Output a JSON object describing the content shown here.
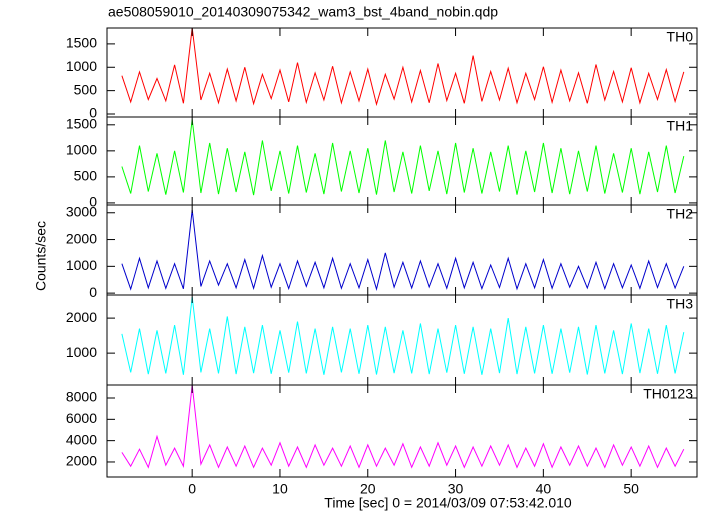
{
  "title": "ae508059010_20140309075342_wam3_bst_4band_nobin.qdp",
  "xlabel": "Time [sec] 0 = 2014/03/09 07:53:42.010",
  "ylabel": "Counts/sec",
  "chart_data": [
    {
      "type": "line",
      "x": [
        -8,
        -7,
        -6,
        -5,
        -4,
        -3,
        -2,
        -1,
        0,
        1,
        2,
        3,
        4,
        5,
        6,
        7,
        8,
        9,
        10,
        11,
        12,
        13,
        14,
        15,
        16,
        17,
        18,
        19,
        20,
        21,
        22,
        23,
        24,
        25,
        26,
        27,
        28,
        29,
        30,
        31,
        32,
        33,
        34,
        35,
        36,
        37,
        38,
        39,
        40,
        41,
        42,
        43,
        44,
        45,
        46,
        47,
        48,
        49,
        50,
        51,
        52,
        53,
        54,
        55,
        56
      ],
      "series": [
        {
          "name": "TH0",
          "color": "#ff0000",
          "values": [
            820,
            260,
            900,
            310,
            760,
            280,
            1050,
            230,
            1840,
            300,
            870,
            240,
            960,
            280,
            1000,
            220,
            850,
            330,
            940,
            260,
            1100,
            250,
            880,
            300,
            1020,
            240,
            900,
            280,
            960,
            210,
            850,
            320,
            1000,
            260,
            930,
            240,
            1080,
            290,
            870,
            230,
            1250,
            270,
            910,
            300,
            980,
            240,
            870,
            310,
            1010,
            250,
            940,
            280,
            880,
            230,
            1060,
            300,
            910,
            260,
            990,
            240,
            870,
            310,
            950,
            270,
            900
          ]
        }
      ],
      "xlim": [
        -9.7,
        57.5
      ],
      "xticks": [
        0,
        10,
        20,
        30,
        40,
        50
      ],
      "ylim": [
        -64,
        1840
      ],
      "yticks": [
        0,
        500,
        1000,
        1500
      ]
    },
    {
      "type": "line",
      "x": [
        -8,
        -7,
        -6,
        -5,
        -4,
        -3,
        -2,
        -1,
        0,
        1,
        2,
        3,
        4,
        5,
        6,
        7,
        8,
        9,
        10,
        11,
        12,
        13,
        14,
        15,
        16,
        17,
        18,
        19,
        20,
        21,
        22,
        23,
        24,
        25,
        26,
        27,
        28,
        29,
        30,
        31,
        32,
        33,
        34,
        35,
        36,
        37,
        38,
        39,
        40,
        41,
        42,
        43,
        44,
        45,
        46,
        47,
        48,
        49,
        50,
        51,
        52,
        53,
        54,
        55,
        56
      ],
      "series": [
        {
          "name": "TH1",
          "color": "#00ff00",
          "values": [
            700,
            180,
            1100,
            220,
            950,
            160,
            1000,
            200,
            1600,
            190,
            1150,
            170,
            1050,
            210,
            980,
            150,
            1200,
            230,
            1000,
            180,
            1100,
            200,
            950,
            170,
            1150,
            220,
            1000,
            190,
            1050,
            160,
            1200,
            210,
            980,
            180,
            1100,
            230,
            1000,
            170,
            1150,
            200,
            1050,
            180,
            980,
            220,
            1100,
            160,
            1000,
            210,
            1150,
            190,
            1050,
            170,
            1000,
            220,
            1100,
            180,
            950,
            200,
            1050,
            170,
            980,
            210,
            1100,
            190,
            900
          ]
        }
      ],
      "xlim": [
        -9.7,
        57.5
      ],
      "xticks": [
        0,
        10,
        20,
        30,
        40,
        50
      ],
      "ylim": [
        -40,
        1650
      ],
      "yticks": [
        0,
        500,
        1000,
        1500
      ]
    },
    {
      "type": "line",
      "x": [
        -8,
        -7,
        -6,
        -5,
        -4,
        -3,
        -2,
        -1,
        0,
        1,
        2,
        3,
        4,
        5,
        6,
        7,
        8,
        9,
        10,
        11,
        12,
        13,
        14,
        15,
        16,
        17,
        18,
        19,
        20,
        21,
        22,
        23,
        24,
        25,
        26,
        27,
        28,
        29,
        30,
        31,
        32,
        33,
        34,
        35,
        36,
        37,
        38,
        39,
        40,
        41,
        42,
        43,
        44,
        45,
        46,
        47,
        48,
        49,
        50,
        51,
        52,
        53,
        54,
        55,
        56
      ],
      "series": [
        {
          "name": "TH2",
          "color": "#0000cc",
          "values": [
            1100,
            150,
            1300,
            200,
            1200,
            180,
            1100,
            160,
            3100,
            250,
            1200,
            300,
            1100,
            200,
            1250,
            180,
            1400,
            220,
            1100,
            170,
            1200,
            250,
            1150,
            200,
            1300,
            180,
            1100,
            200,
            1250,
            150,
            1500,
            220,
            1150,
            190,
            1200,
            230,
            1100,
            180,
            1300,
            200,
            1150,
            170,
            1050,
            210,
            1300,
            160,
            1100,
            200,
            1250,
            180,
            1100,
            220,
            1000,
            190,
            1150,
            170,
            1100,
            200,
            1050,
            180,
            1200,
            210,
            1100,
            190,
            1000
          ]
        }
      ],
      "xlim": [
        -9.7,
        57.5
      ],
      "xticks": [
        0,
        10,
        20,
        30,
        40,
        50
      ],
      "ylim": [
        -70,
        3290
      ],
      "yticks": [
        0,
        1000,
        2000,
        3000
      ]
    },
    {
      "type": "line",
      "x": [
        -8,
        -7,
        -6,
        -5,
        -4,
        -3,
        -2,
        -1,
        0,
        1,
        2,
        3,
        4,
        5,
        6,
        7,
        8,
        9,
        10,
        11,
        12,
        13,
        14,
        15,
        16,
        17,
        18,
        19,
        20,
        21,
        22,
        23,
        24,
        25,
        26,
        27,
        28,
        29,
        30,
        31,
        32,
        33,
        34,
        35,
        36,
        37,
        38,
        39,
        40,
        41,
        42,
        43,
        44,
        45,
        46,
        47,
        48,
        49,
        50,
        51,
        52,
        53,
        54,
        55,
        56
      ],
      "series": [
        {
          "name": "TH3",
          "color": "#00ffff",
          "values": [
            1550,
            450,
            1700,
            400,
            1650,
            420,
            1800,
            380,
            2600,
            450,
            1700,
            420,
            2050,
            400,
            1750,
            430,
            1800,
            410,
            1650,
            440,
            1900,
            420,
            1700,
            380,
            1750,
            450,
            1700,
            410,
            1800,
            390,
            1750,
            430,
            1650,
            420,
            1850,
            400,
            1700,
            440,
            1800,
            410,
            1750,
            380,
            1700,
            430,
            2000,
            400,
            1750,
            420,
            1800,
            410,
            1700,
            440,
            1750,
            390,
            1800,
            420,
            1650,
            400,
            1850,
            430,
            1700,
            410,
            1800,
            420,
            1600
          ]
        }
      ],
      "xlim": [
        -9.7,
        57.5
      ],
      "xticks": [
        0,
        10,
        20,
        30,
        40,
        50
      ],
      "ylim": [
        90,
        2660
      ],
      "yticks": [
        1000,
        2000
      ]
    },
    {
      "type": "line",
      "x": [
        -8,
        -7,
        -6,
        -5,
        -4,
        -3,
        -2,
        -1,
        0,
        1,
        2,
        3,
        4,
        5,
        6,
        7,
        8,
        9,
        10,
        11,
        12,
        13,
        14,
        15,
        16,
        17,
        18,
        19,
        20,
        21,
        22,
        23,
        24,
        25,
        26,
        27,
        28,
        29,
        30,
        31,
        32,
        33,
        34,
        35,
        36,
        37,
        38,
        39,
        40,
        41,
        42,
        43,
        44,
        45,
        46,
        47,
        48,
        49,
        50,
        51,
        52,
        53,
        54,
        55,
        56
      ],
      "series": [
        {
          "name": "TH0123",
          "color": "#ff00ff",
          "values": [
            2900,
            1600,
            3200,
            1500,
            4400,
            1700,
            3300,
            1600,
            9200,
            1800,
            3600,
            1500,
            3400,
            1600,
            3500,
            1500,
            3300,
            1700,
            3800,
            1600,
            3400,
            1500,
            3600,
            1700,
            3300,
            1600,
            3500,
            1500,
            3600,
            1600,
            3300,
            1700,
            3700,
            1500,
            3400,
            1600,
            3800,
            1700,
            3500,
            1500,
            3400,
            1600,
            3500,
            1700,
            3600,
            1500,
            3300,
            1600,
            3700,
            1500,
            3400,
            1700,
            3500,
            1600,
            3300,
            1500,
            3600,
            1700,
            3400,
            1600,
            3500,
            1500,
            3300,
            1600,
            3200
          ]
        }
      ],
      "xlim": [
        -9.7,
        57.5
      ],
      "xticks": [
        0,
        10,
        20,
        30,
        40,
        50
      ],
      "ylim": [
        590,
        9220
      ],
      "yticks": [
        2000,
        4000,
        6000,
        8000
      ]
    }
  ]
}
